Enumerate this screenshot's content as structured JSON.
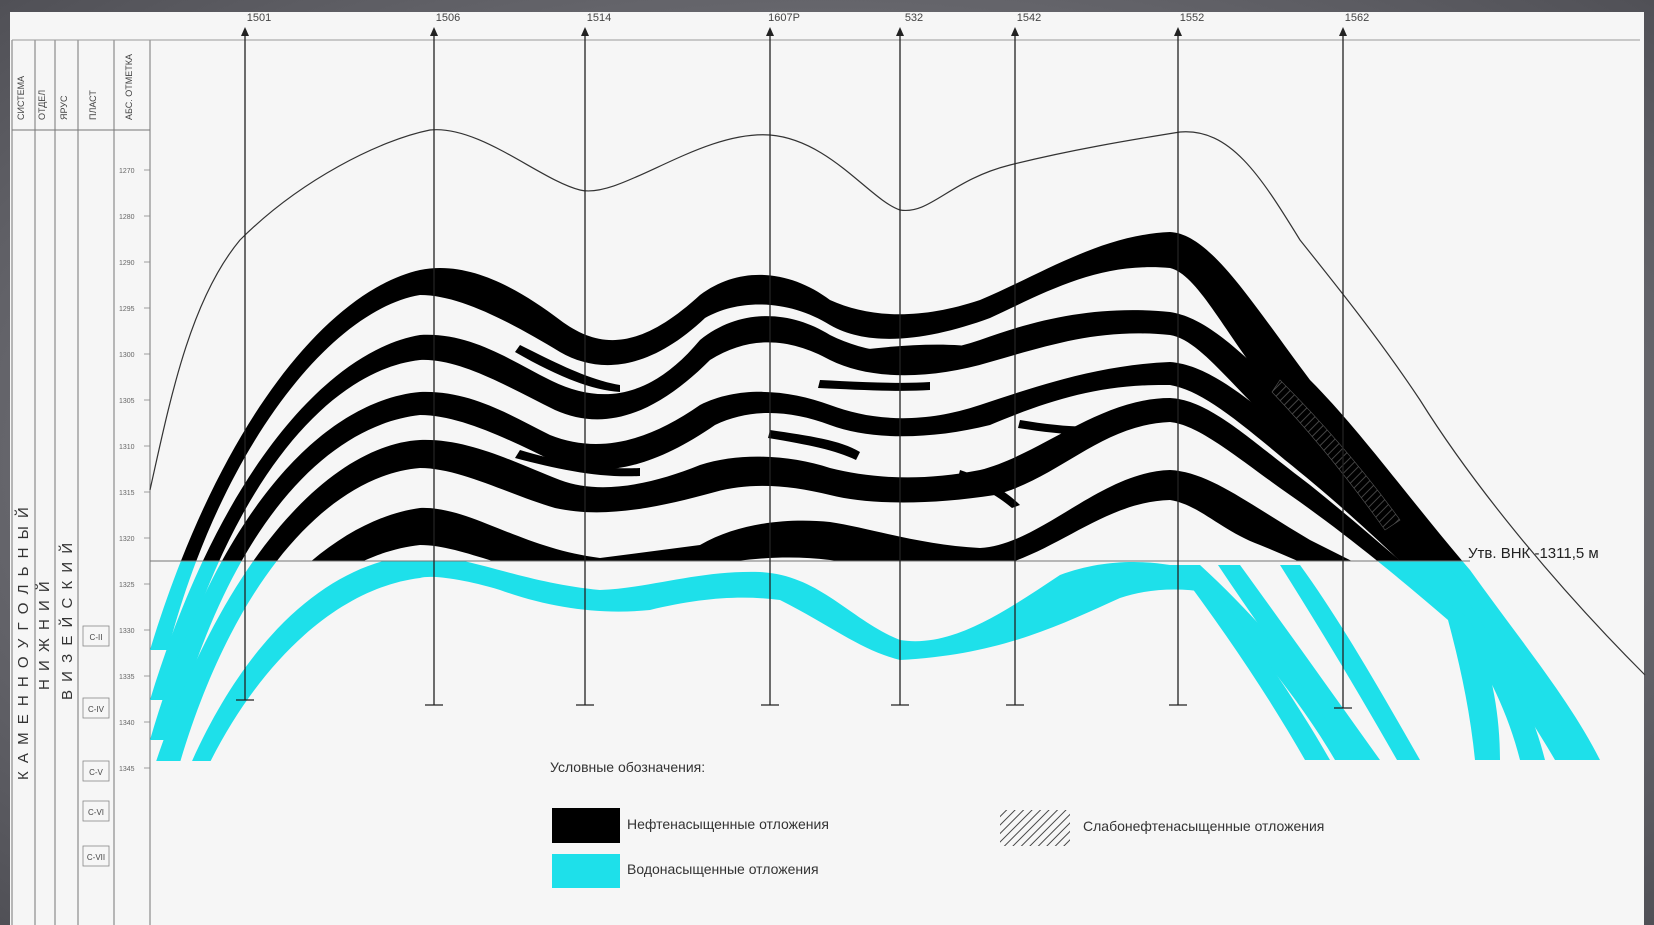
{
  "header": {
    "columns": [
      "СИСТЕМА",
      "ОТДЕЛ",
      "ЯРУС",
      "ПЛАСТ",
      "АБС. ОТМЕТКА"
    ]
  },
  "stratigraphy": {
    "system": "К А М Е Н Н О У Г О Л Ь Н Ы Й",
    "division": "Н И Ж Н И Й",
    "stage": "В И З Е Й С К И Й",
    "layers": [
      "C-II",
      "C-IV",
      "C-V",
      "C-VI",
      "C-VII"
    ]
  },
  "depth_scale": [
    "1270",
    "1280",
    "1290",
    "1295",
    "1300",
    "1305",
    "1310",
    "1315",
    "1320",
    "1325",
    "1330",
    "1335",
    "1340",
    "1345"
  ],
  "wells": [
    "1501",
    "1506",
    "1514",
    "1607P",
    "532",
    "1542",
    "1552",
    "1562"
  ],
  "owc_label": "Утв. ВНК -1311,5 м",
  "legend": {
    "title": "Условные обозначения:",
    "oil": "Нефтенасыщенные отложения",
    "water": "Водонасыщенные отложения",
    "weak_oil": "Слабонефтенасыщенные отложения"
  },
  "colors": {
    "oil": "#000000",
    "water": "#1ee0ea",
    "paper": "#f6f6f6",
    "frame": "#6c6c72"
  }
}
